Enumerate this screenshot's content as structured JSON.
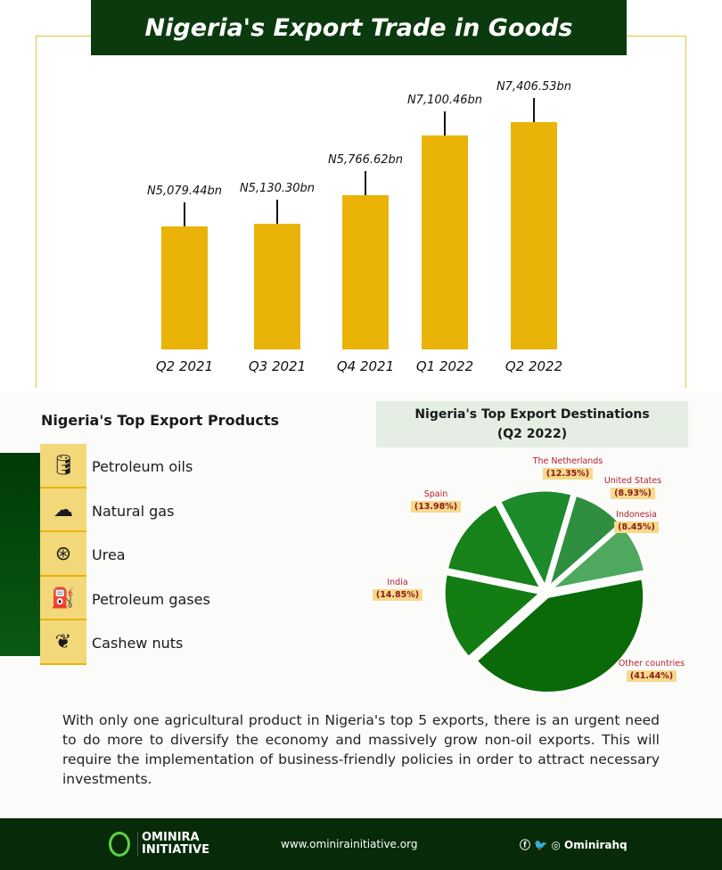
{
  "header": {
    "title": "Nigeria's Export Trade in Goods"
  },
  "chart_data": [
    {
      "type": "bar",
      "title": "Nigeria's Export Trade in Goods",
      "categories": [
        "Q2 2021",
        "Q3 2021",
        "Q4 2021",
        "Q1 2022",
        "Q2 2022"
      ],
      "values": [
        5079.44,
        5130.3,
        5766.62,
        7100.46,
        7406.53
      ],
      "data_labels": [
        "N5,079.44bn",
        "N5,130.30bn",
        "N5,766.62bn",
        "N7,100.46bn",
        "N7,406.53bn"
      ],
      "unit": "N billion",
      "color": "#e9b307",
      "grid": false
    },
    {
      "type": "pie",
      "title": "Nigeria's Top Export Destinations",
      "subtitle": "(Q2 2022)",
      "slices": [
        {
          "label": "The Netherlands",
          "value": 12.35,
          "pct": "(12.35%)",
          "color": "#1d8a2c"
        },
        {
          "label": "United States",
          "value": 8.93,
          "pct": "(8.93%)",
          "color": "#2f8f40"
        },
        {
          "label": "Indonesia",
          "value": 8.45,
          "pct": "(8.45%)",
          "color": "#4ea85e"
        },
        {
          "label": "Other countries",
          "value": 41.44,
          "pct": "(41.44%)",
          "color": "#0a6a0a"
        },
        {
          "label": "India",
          "value": 14.85,
          "pct": "(14.85%)",
          "color": "#137d14"
        },
        {
          "label": "Spain",
          "value": 13.98,
          "pct": "(13.98%)",
          "color": "#17821a"
        }
      ]
    }
  ],
  "products": {
    "title": "Nigeria's Top Export Products",
    "items": [
      {
        "label": "Petroleum oils",
        "icon": "oil-rig-icon"
      },
      {
        "label": "Natural gas",
        "icon": "co2-cloud-icon"
      },
      {
        "label": "Urea",
        "icon": "kidney-icon"
      },
      {
        "label": "Petroleum gases",
        "icon": "fuel-pump-icon"
      },
      {
        "label": "Cashew nuts",
        "icon": "cashew-icon"
      }
    ]
  },
  "paragraph": "With only one agricultural product in Nigeria's top 5 exports, there is an urgent need to do more to diversify the economy and massively grow non-oil exports. This will require the implementation of business-friendly policies in order to attract necessary investments.",
  "footer": {
    "logo_line1": "OMINIRA",
    "logo_line2": "INITIATIVE",
    "url": "www.ominirainitiative.org",
    "social_handle": "Ominirahq"
  }
}
